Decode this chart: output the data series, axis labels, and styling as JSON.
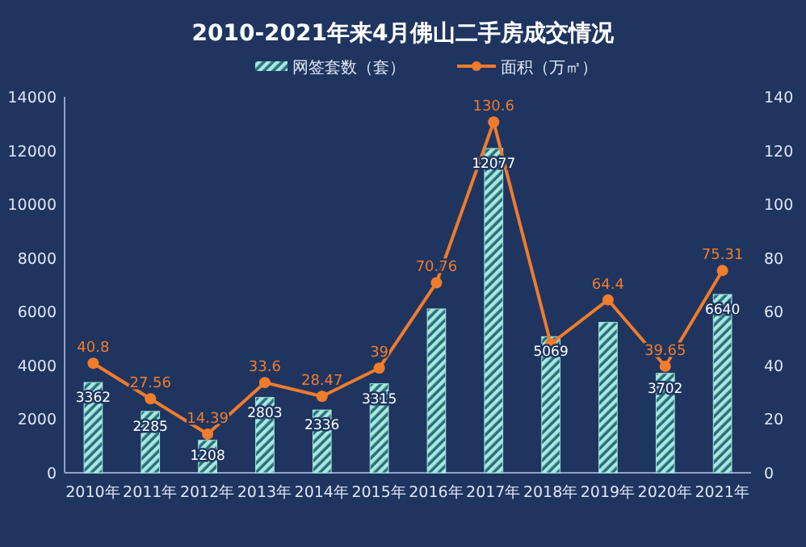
{
  "chart_data": {
    "type": "bar",
    "title": "2010-2021年来4月佛山二手房成交情况",
    "categories": [
      "2010年",
      "2011年",
      "2012年",
      "2013年",
      "2014年",
      "2015年",
      "2016年",
      "2017年",
      "2018年",
      "2019年",
      "2020年",
      "2021年"
    ],
    "series": [
      {
        "name": "网签套数（套）",
        "color": "#a8e8e0",
        "values": [
          3362,
          2285,
          1208,
          2803,
          2336,
          3315,
          6100,
          12077,
          5069,
          5600,
          3702,
          6640
        ],
        "value_labels": [
          "3362",
          "2285",
          "1208",
          "2803",
          "2336",
          "3315",
          null,
          "12077",
          "5069",
          null,
          "3702",
          "6640"
        ]
      },
      {
        "name": "面积（万㎡）",
        "type": "line",
        "axis": "y2",
        "color": "#f07c2c",
        "marker": "circle",
        "values": [
          40.8,
          27.56,
          14.39,
          33.6,
          28.47,
          39,
          70.76,
          130.6,
          48,
          64.4,
          39.65,
          75.31
        ],
        "value_labels": [
          "40.8",
          "27.56",
          "14.39",
          "33.6",
          "28.47",
          "39",
          "70.76",
          "130.6",
          null,
          "64.4",
          "39.65",
          "75.31"
        ]
      }
    ],
    "ylim": [
      0,
      14000
    ],
    "yticks": [
      0,
      2000,
      4000,
      6000,
      8000,
      10000,
      12000,
      14000
    ],
    "y2lim": [
      0,
      140
    ],
    "y2ticks": [
      0,
      20,
      40,
      60,
      80,
      100,
      120,
      140
    ],
    "legend": "top",
    "grid": false
  }
}
